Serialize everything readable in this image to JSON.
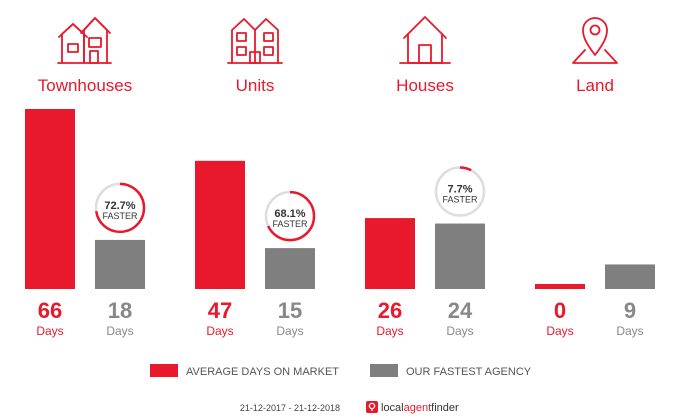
{
  "chart_data": {
    "type": "bar",
    "categories": [
      "Townhouses",
      "Units",
      "Houses",
      "Land"
    ],
    "series": [
      {
        "name": "AVERAGE DAYS ON MARKET",
        "values": [
          66,
          47,
          26,
          0
        ]
      },
      {
        "name": "OUR FASTEST AGENCY",
        "values": [
          18,
          15,
          24,
          9
        ]
      }
    ],
    "unit": "Days",
    "badges": [
      {
        "percent": "72.7%",
        "label": "FASTER",
        "fraction": 0.727
      },
      {
        "percent": "68.1%",
        "label": "FASTER",
        "fraction": 0.681
      },
      {
        "percent": "7.7%",
        "label": "FASTER",
        "fraction": 0.077
      },
      null
    ],
    "icons": [
      "townhouse-icon",
      "units-icon",
      "house-icon",
      "land-pin-icon"
    ],
    "ylim": [
      0,
      66
    ],
    "legend_position": "bottom",
    "colors": {
      "market": "#e8192c",
      "agency": "#7f7f7f",
      "value_agency": "#888888"
    }
  },
  "footer": {
    "date_range": "21-12-2017 - 21-12-2018",
    "brand_local": "local",
    "brand_agent": "agent",
    "brand_finder": "finder"
  }
}
